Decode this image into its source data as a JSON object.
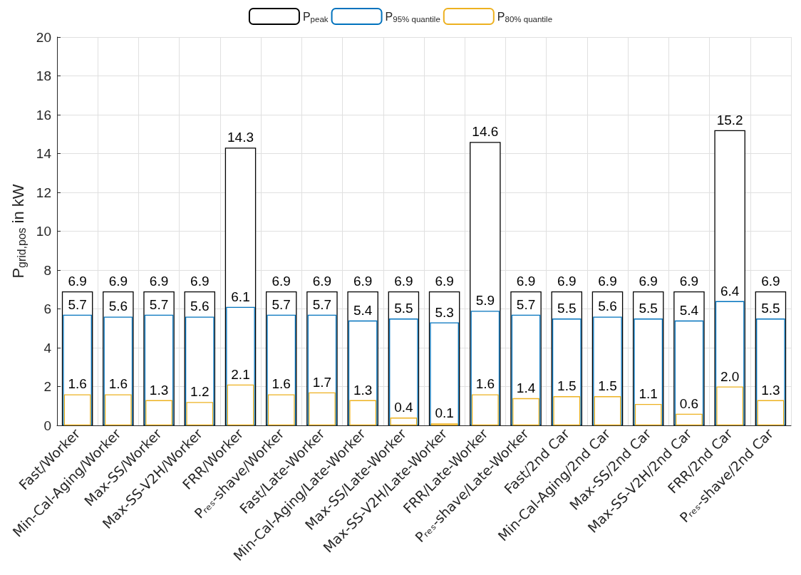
{
  "chart_data": {
    "type": "bar",
    "ylabel": "P$_{grid,pos}$ in kW",
    "categories": [
      "Fast/Worker",
      "Min-Cal-Aging/Worker",
      "Max-SS/Worker",
      "Max-SS-V2H/Worker",
      "FRR/Worker",
      "Pᵣₑₛ-shave/Worker",
      "Fast/Late-Worker",
      "Min-Cal-Aging/Late-Worker",
      "Max-SS/Late-Worker",
      "Max-SS-V2H/Late-Worker",
      "FRR/Late-Worker",
      "Pᵣₑₛ-shave/Late-Worker",
      "Fast/2nd Car",
      "Min-Cal-Aging/2nd Car",
      "Max-SS/2nd Car",
      "Max-SS-V2H/2nd Car",
      "FRR/2nd Car",
      "Pᵣₑₛ-shave/2nd Car"
    ],
    "series": [
      {
        "name": "P$_{peak}$",
        "color": "#000000",
        "values": [
          6.9,
          6.9,
          6.9,
          6.9,
          14.3,
          6.9,
          6.9,
          6.9,
          6.9,
          6.9,
          14.6,
          6.9,
          6.9,
          6.9,
          6.9,
          6.9,
          15.2,
          6.9
        ],
        "value_labels": [
          "6.9",
          "6.9",
          "6.9",
          "6.9",
          "14.3",
          "6.9",
          "6.9",
          "6.9",
          "6.9",
          "6.9",
          "14.6",
          "6.9",
          "6.9",
          "6.9",
          "6.9",
          "6.9",
          "15.2",
          "6.9"
        ]
      },
      {
        "name": "P$_{95% quantile}$",
        "color": "#0072bd",
        "values": [
          5.7,
          5.6,
          5.7,
          5.6,
          6.1,
          5.7,
          5.7,
          5.4,
          5.5,
          5.3,
          5.9,
          5.7,
          5.5,
          5.6,
          5.5,
          5.4,
          6.4,
          5.5
        ],
        "value_labels": [
          "5.7",
          "5.6",
          "5.7",
          "5.6",
          "6.1",
          "5.7",
          "5.7",
          "5.4",
          "5.5",
          "5.3",
          "5.9",
          "5.7",
          "5.5",
          "5.6",
          "5.5",
          "5.4",
          "6.4",
          "5.5"
        ]
      },
      {
        "name": "P$_{80% quantile}$",
        "color": "#edb120",
        "values": [
          1.6,
          1.6,
          1.3,
          1.2,
          2.1,
          1.6,
          1.7,
          1.3,
          0.4,
          0.1,
          1.6,
          1.4,
          1.5,
          1.5,
          1.1,
          0.6,
          2.0,
          1.3
        ],
        "value_labels": [
          "1.6",
          "1.6",
          "1.3",
          "1.2",
          "2.1",
          "1.6",
          "1.7",
          "1.3",
          "0.4",
          "0.1",
          "1.6",
          "1.4",
          "1.5",
          "1.5",
          "1.1",
          "0.6",
          "2.0",
          "1.3"
        ]
      }
    ],
    "ylim": [
      0,
      20
    ],
    "yticks": [
      0,
      2,
      4,
      6,
      8,
      10,
      12,
      14,
      16,
      18,
      20
    ],
    "grid": true,
    "legend": "top"
  }
}
